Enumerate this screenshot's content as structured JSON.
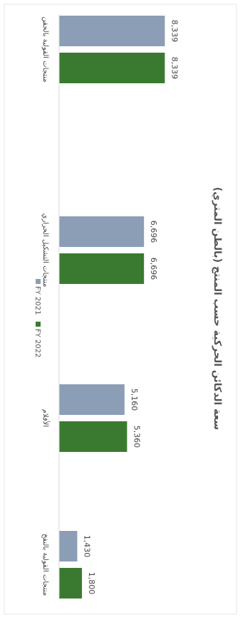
{
  "chart_data": {
    "type": "bar",
    "orientation": "horizontal",
    "rotation_degrees": 90,
    "title": "سعة الدكائن الحركية حسب المنتج (بالطن المتري)",
    "categories": [
      "منتجات القولبة بالحقن",
      "منتجات التشكيل الحراري",
      "الأفلام",
      "منتجات القولبة بالنفخ"
    ],
    "series": [
      {
        "name": "FY 2021",
        "values": [
          8339,
          6696,
          5160,
          1430
        ],
        "value_labels": [
          "8,339",
          "6,696",
          "5,160",
          "1,430"
        ]
      },
      {
        "name": "FY 2022",
        "values": [
          8339,
          6696,
          5360,
          1800
        ],
        "value_labels": [
          "8,339",
          "6,696",
          "5,360",
          "1,800"
        ]
      }
    ],
    "colors": {
      "FY 2021": "#8c9db6",
      "FY 2022": "#3a7a30"
    },
    "xlim": [
      0,
      9000
    ],
    "grid": false,
    "legend_position": "bottom"
  }
}
